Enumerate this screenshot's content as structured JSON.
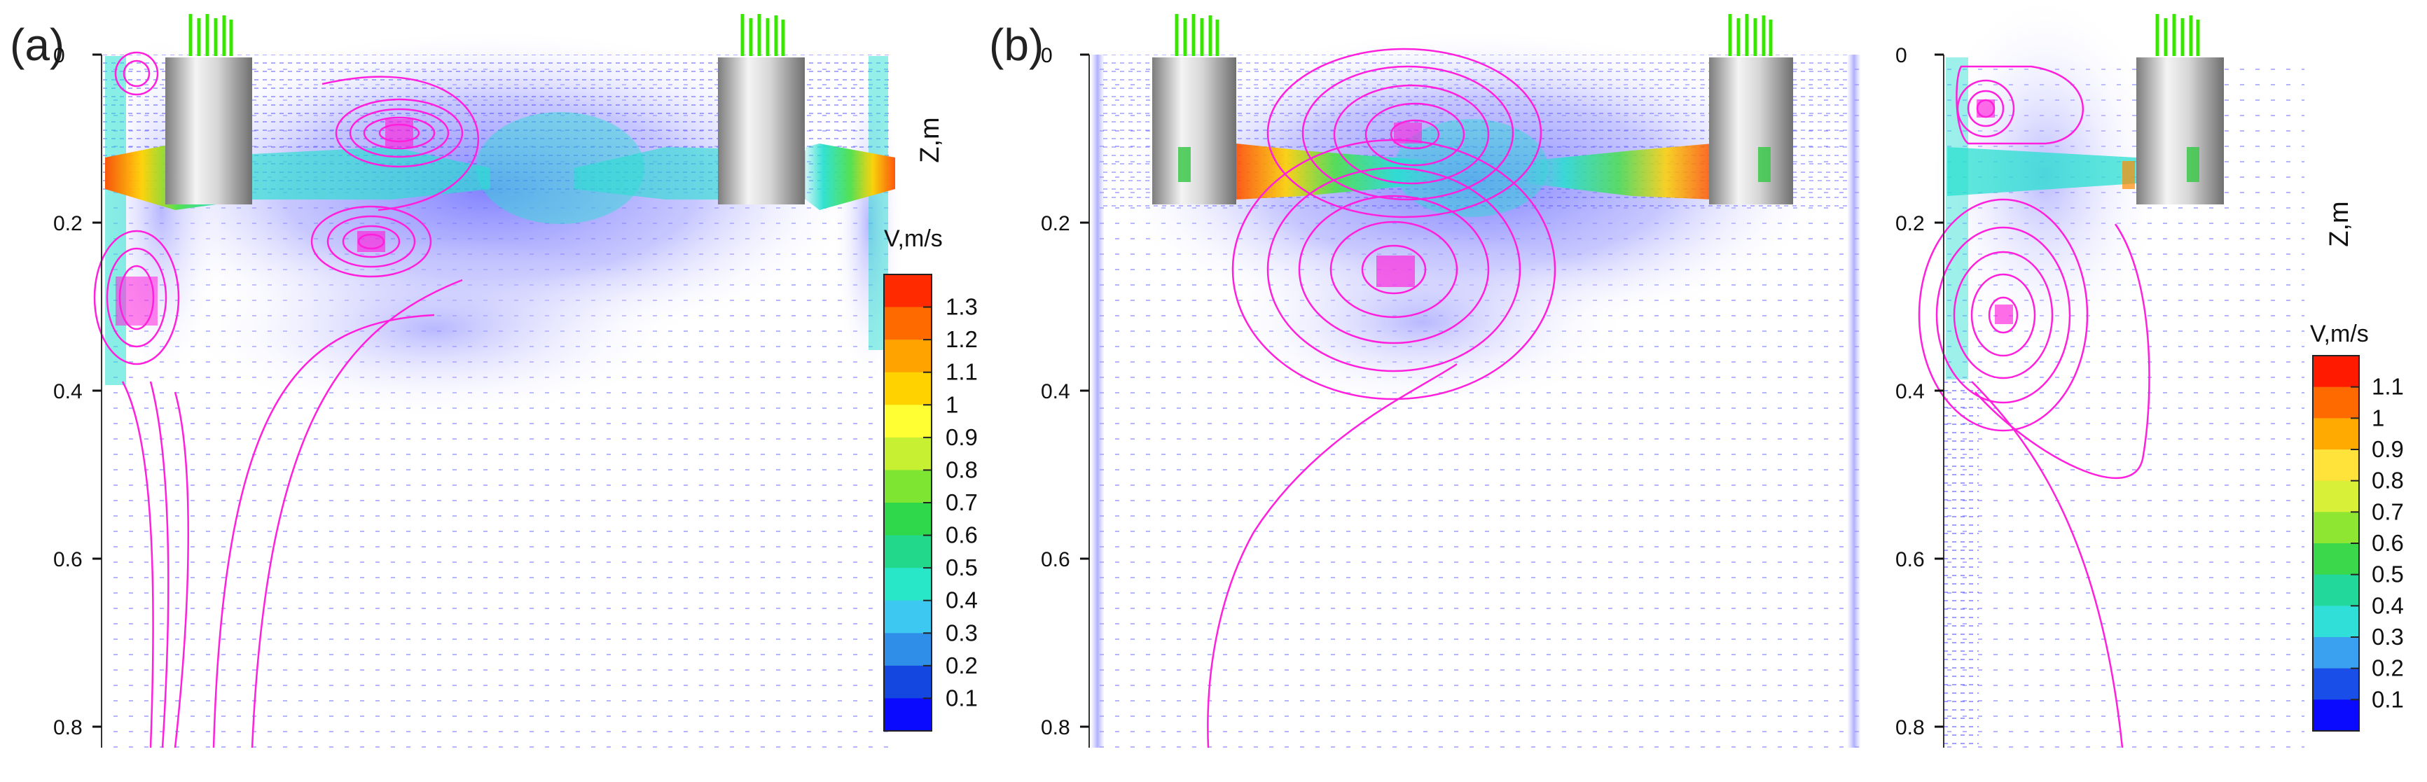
{
  "panels": [
    {
      "id": "a",
      "label": "(a)",
      "z_axis": {
        "title": "Z,m",
        "ticks": [
          "0",
          "0.2",
          "0.4",
          "0.6",
          "0.8"
        ]
      },
      "legend": {
        "title": "V,m/s",
        "levels": [
          "1.3",
          "1.2",
          "1.1",
          "1",
          "0.9",
          "0.8",
          "0.7",
          "0.6",
          "0.5",
          "0.4",
          "0.3",
          "0.2",
          "0.1"
        ],
        "colors": [
          "#ff2a00",
          "#ff6a00",
          "#ffa300",
          "#ffd200",
          "#ffff33",
          "#c8f032",
          "#7ee632",
          "#2ed84a",
          "#22d88a",
          "#28e6c8",
          "#3cc8f0",
          "#2f8fe8",
          "#1446e0",
          "#0a0aff"
        ]
      }
    },
    {
      "id": "b",
      "label": "(b)",
      "z_axis": {
        "title": "Z,m",
        "ticks": [
          "0",
          "0.2",
          "0.4",
          "0.6",
          "0.8"
        ]
      },
      "z_axis_right": {
        "title": "Z,m",
        "ticks": [
          "0",
          "0.2",
          "0.4",
          "0.6",
          "0.8"
        ]
      },
      "legend": {
        "title": "V,m/s",
        "levels": [
          "1.1",
          "1",
          "0.9",
          "0.8",
          "0.7",
          "0.6",
          "0.5",
          "0.4",
          "0.3",
          "0.2",
          "0.1"
        ],
        "colors": [
          "#ff1a00",
          "#ff6a00",
          "#ffaa00",
          "#ffe23a",
          "#d8f038",
          "#8ee632",
          "#3ad84a",
          "#22d89a",
          "#30e0d8",
          "#3aa0f0",
          "#1a4ee8",
          "#0a0aff"
        ]
      }
    }
  ],
  "colors": {
    "streamline": "#ff1fdc",
    "impeller_blades": "#39e600",
    "shaft_dark": "#8a8a8a",
    "shaft_light": "#f2f2f2",
    "low_velocity_haze": "#8c8cff",
    "jet_core": "#28e0c8"
  }
}
